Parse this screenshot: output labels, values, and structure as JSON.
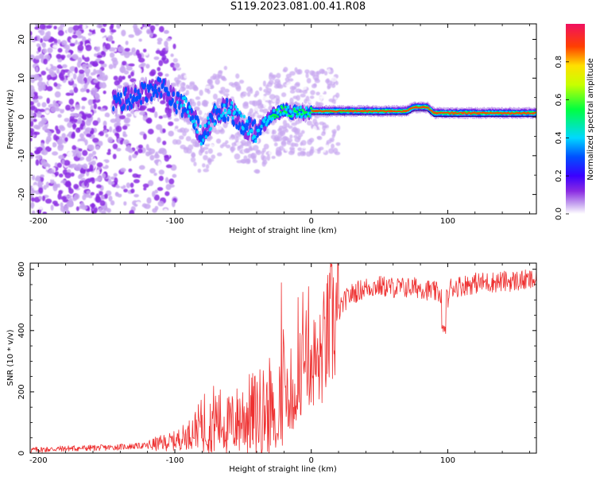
{
  "figure": {
    "title": "S119.2023.081.00.41.R08"
  },
  "chart_data": [
    {
      "type": "heatmap",
      "xlabel": "Height of straight line (km)",
      "ylabel": "Frequency (Hz)",
      "xlim": [
        -206,
        165
      ],
      "ylim": [
        -25,
        24
      ],
      "xticks": [
        -200,
        -100,
        0,
        100
      ],
      "yticks": [
        -20,
        -10,
        0,
        10,
        20
      ],
      "colorbar": {
        "label": "Normalized spectral amplitude",
        "range": [
          0,
          1
        ],
        "ticks": [
          0.0,
          0.2,
          0.4,
          0.6,
          0.8
        ]
      },
      "ridge": {
        "x": [
          -140,
          -125,
          -110,
          -100,
          -90,
          -80,
          -70,
          -60,
          -50,
          -40,
          -35,
          -30,
          -25,
          -20,
          -15,
          -10,
          -5,
          0,
          20,
          50,
          70,
          75,
          85,
          90,
          95,
          100,
          130,
          165
        ],
        "y": [
          4,
          6,
          8,
          4,
          2,
          -5,
          1,
          2,
          -2,
          -4,
          -2,
          0,
          1,
          2,
          1,
          1.5,
          1,
          1.5,
          1.5,
          1.5,
          1.5,
          2.5,
          2.5,
          1,
          1,
          1,
          1,
          1
        ]
      }
    },
    {
      "type": "line",
      "xlabel": "Height of straight line (km)",
      "ylabel": "SNR (10 * v/v)",
      "xlim": [
        -206,
        165
      ],
      "ylim": [
        0,
        620
      ],
      "xticks": [
        -200,
        -100,
        0,
        100
      ],
      "yticks": [
        0,
        200,
        400,
        600
      ],
      "color": "#ee3030",
      "series": [
        {
          "name": "SNR",
          "x": [
            -206,
            -180,
            -150,
            -120,
            -100,
            -90,
            -80,
            -70,
            -60,
            -50,
            -40,
            -30,
            -25,
            -22,
            -20,
            -15,
            -10,
            -5,
            0,
            5,
            10,
            15,
            20,
            25,
            30,
            40,
            50,
            60,
            80,
            95,
            100,
            102,
            120,
            140,
            165
          ],
          "y": [
            10,
            15,
            18,
            25,
            40,
            60,
            100,
            110,
            90,
            120,
            130,
            150,
            40,
            300,
            250,
            130,
            240,
            300,
            320,
            280,
            360,
            420,
            460,
            500,
            520,
            540,
            545,
            540,
            540,
            520,
            500,
            540,
            555,
            560,
            565
          ]
        }
      ]
    }
  ]
}
